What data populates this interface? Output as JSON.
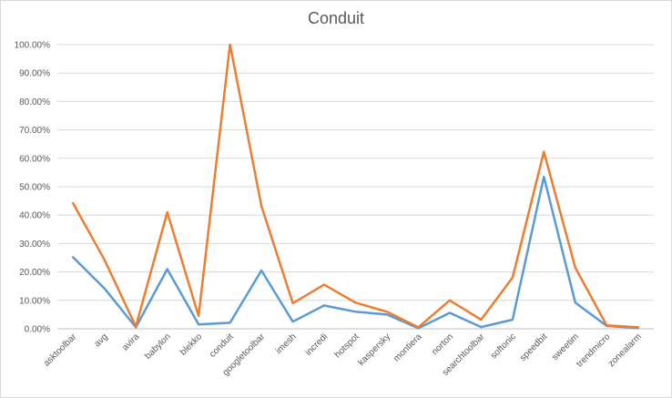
{
  "chart_data": {
    "type": "line",
    "title": "Conduit",
    "xlabel": "",
    "ylabel": "",
    "ylim": [
      0,
      100
    ],
    "y_tick_labels": [
      "0.00%",
      "10.00%",
      "20.00%",
      "30.00%",
      "40.00%",
      "50.00%",
      "60.00%",
      "70.00%",
      "80.00%",
      "90.00%",
      "100.00%"
    ],
    "categories": [
      "asktoolbar",
      "avg",
      "avira",
      "babylon",
      "blekko",
      "conduit",
      "googletoolbar",
      "imesh",
      "incredi",
      "hotspot",
      "kaspersky",
      "montiera",
      "norton",
      "searchtoolbar",
      "softonic",
      "speedbit",
      "sweetim",
      "trendmicro",
      "zonealarm"
    ],
    "grid": "horizontal",
    "legend": "none",
    "series": [
      {
        "color": "#5b9bd5",
        "values": [
          25.2,
          14.2,
          0.5,
          21.0,
          1.5,
          2.1,
          20.5,
          2.5,
          8.2,
          6.0,
          5.0,
          0.2,
          5.6,
          0.6,
          3.2,
          53.5,
          9.2,
          1.0,
          0.3
        ]
      },
      {
        "color": "#ed7d31",
        "values": [
          44.2,
          24.3,
          0.8,
          41.0,
          4.5,
          100.0,
          43.2,
          9.0,
          15.5,
          9.2,
          6.0,
          0.5,
          10.0,
          3.2,
          18.0,
          62.3,
          21.5,
          1.2,
          0.5
        ]
      }
    ]
  }
}
